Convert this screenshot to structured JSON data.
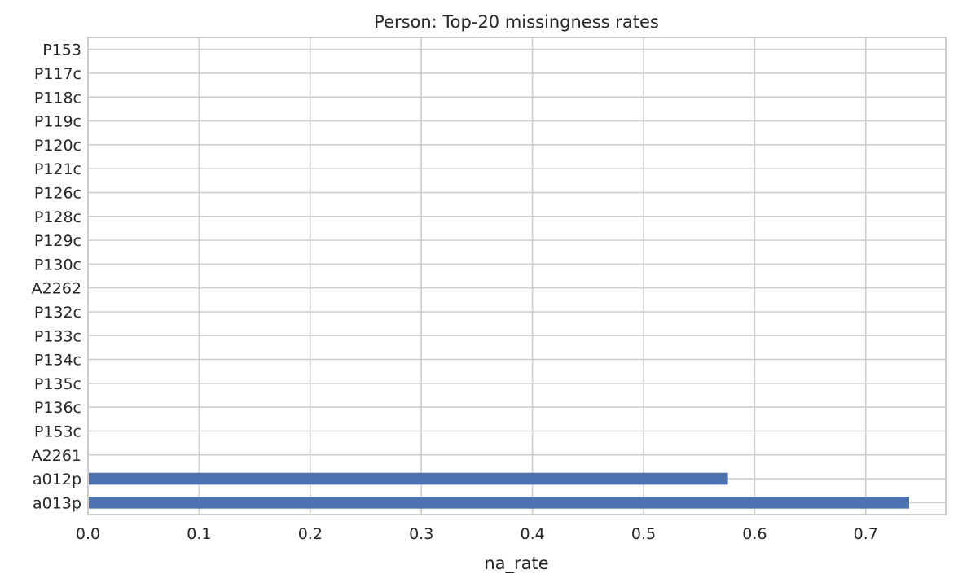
{
  "chart_data": {
    "type": "bar",
    "orientation": "horizontal",
    "title": "Person: Top-20 missingness rates",
    "xlabel": "na_rate",
    "ylabel": "",
    "categories": [
      "P153",
      "P117c",
      "P118c",
      "P119c",
      "P120c",
      "P121c",
      "P126c",
      "P128c",
      "P129c",
      "P130c",
      "A2262",
      "P132c",
      "P133c",
      "P134c",
      "P135c",
      "P136c",
      "P153c",
      "A2261",
      "a012p",
      "a013p"
    ],
    "values": [
      0,
      0,
      0,
      0,
      0,
      0,
      0,
      0,
      0,
      0,
      0,
      0,
      0,
      0,
      0,
      0,
      0,
      0,
      0.576,
      0.739
    ],
    "xlim": [
      0,
      0.772
    ],
    "xticks": [
      0.0,
      0.1,
      0.2,
      0.3,
      0.4,
      0.5,
      0.6,
      0.7
    ],
    "xtick_labels": [
      "0.0",
      "0.1",
      "0.2",
      "0.3",
      "0.4",
      "0.5",
      "0.6",
      "0.7"
    ],
    "grid": true,
    "bar_color": "#4c72b0"
  }
}
